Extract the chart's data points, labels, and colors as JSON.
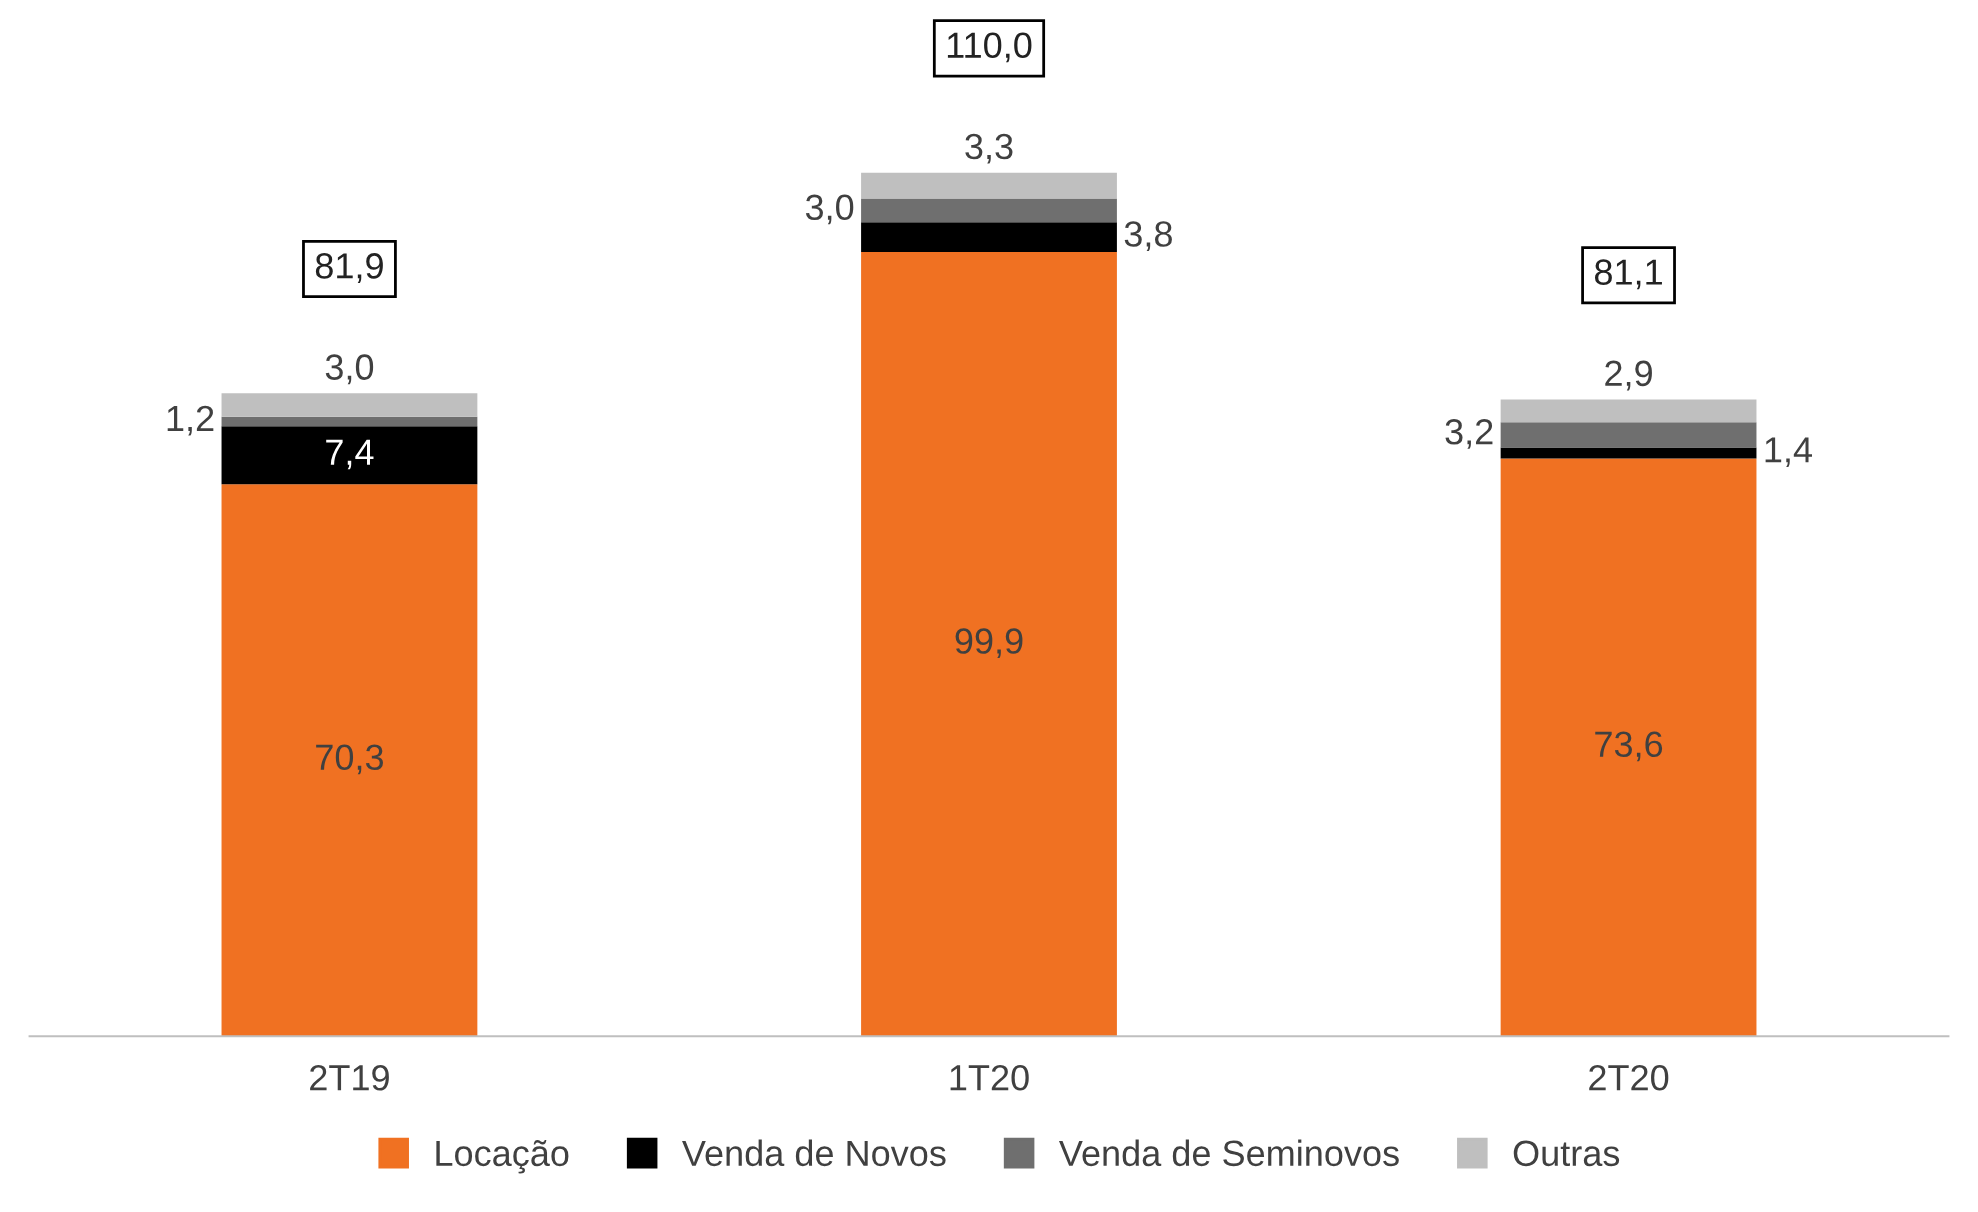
{
  "chart_data": {
    "type": "bar",
    "stacked": true,
    "categories": [
      "2T19",
      "1T20",
      "2T20"
    ],
    "series": [
      {
        "name": "Locação",
        "color": "#f07122",
        "values": [
          70.3,
          99.9,
          73.6
        ],
        "value_labels": [
          "70,3",
          "99,9",
          "73,6"
        ]
      },
      {
        "name": "Venda de Novos",
        "color": "#000000",
        "values": [
          7.4,
          3.8,
          1.4
        ],
        "value_labels": [
          "7,4",
          "3,8",
          "1,4"
        ]
      },
      {
        "name": "Venda de Seminovos",
        "color": "#6f6f6f",
        "values": [
          1.2,
          3.0,
          3.2
        ],
        "value_labels": [
          "1,2",
          "3,0",
          "3,2"
        ]
      },
      {
        "name": "Outras",
        "color": "#bfbfbf",
        "values": [
          3.0,
          3.3,
          2.9
        ],
        "value_labels": [
          "3,0",
          "3,3",
          "2,9"
        ]
      }
    ],
    "totals": [
      "81,9",
      "110,0",
      "81,1"
    ],
    "legend": "bottom",
    "grid": false,
    "tick_labels": "x"
  }
}
